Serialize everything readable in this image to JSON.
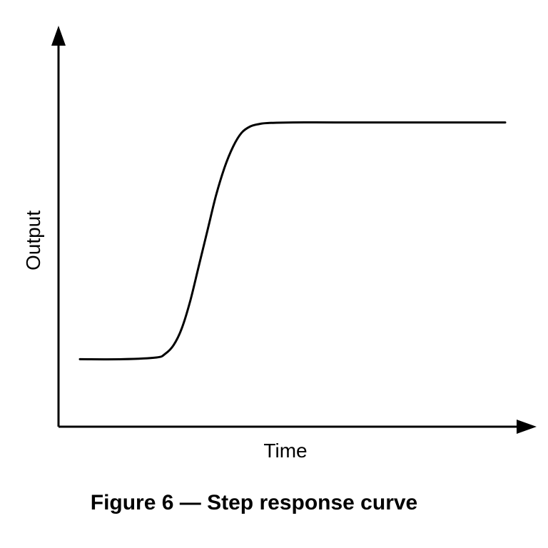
{
  "chart_data": {
    "type": "line",
    "xlabel": "Time",
    "ylabel": "Output",
    "caption": "Figure 6 — Step response curve",
    "grid": false,
    "legend": "none",
    "xlim": [
      0,
      100
    ],
    "ylim": [
      0,
      100
    ],
    "series": [
      {
        "x": [
          0,
          10,
          18,
          20,
          22,
          24,
          26,
          28,
          30,
          32,
          34,
          36,
          38,
          40,
          42,
          44,
          50,
          60,
          80,
          100
        ],
        "values": [
          20,
          20,
          20.5,
          21.5,
          24,
          29,
          37,
          47,
          57,
          67,
          75,
          81,
          85,
          86.8,
          87.5,
          87.8,
          88,
          88,
          88,
          88
        ]
      }
    ],
    "colors": {
      "line": "#000000",
      "axis": "#000000",
      "background": "#ffffff"
    }
  }
}
